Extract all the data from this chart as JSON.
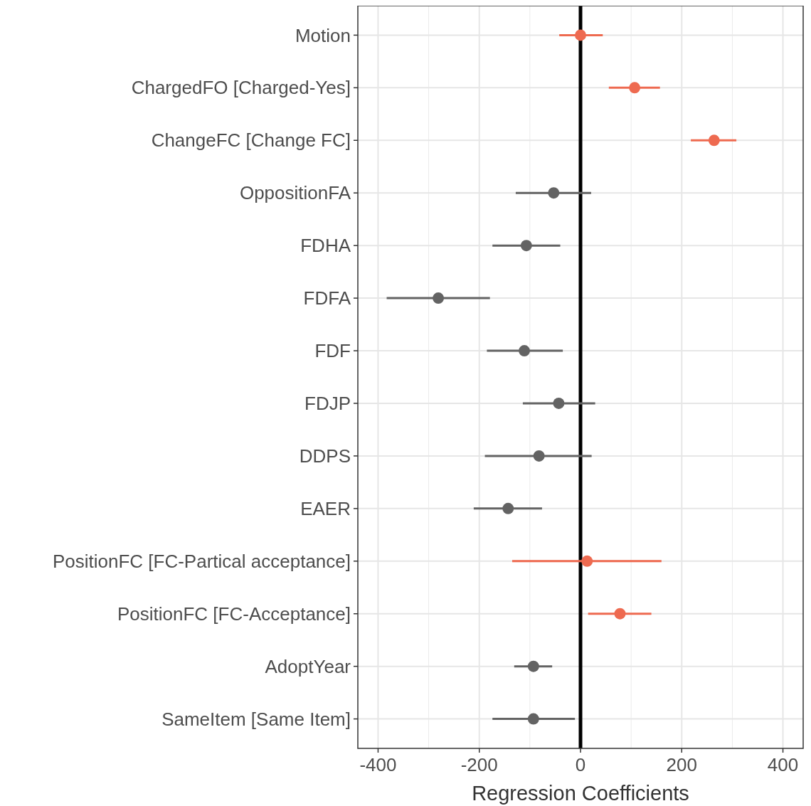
{
  "chart_data": {
    "type": "scatter",
    "orientation": "horizontal",
    "xlabel": "Regression Coefficients",
    "categories": [
      "Motion",
      "ChargedFO [Charged-Yes]",
      "ChangeFC [Change FC]",
      "OppositionFA",
      "FDHA",
      "FDFA",
      "FDF",
      "FDJP",
      "DDPS",
      "EAER",
      "PositionFC [FC-Partical acceptance]",
      "PositionFC [FC-Acceptance]",
      "AdoptYear",
      "SameItem [Same Item]"
    ],
    "values": [
      0,
      107,
      264,
      -53,
      -107,
      -281,
      -111,
      -43,
      -82,
      -143,
      13,
      78,
      -93,
      -93
    ],
    "errors": [
      [
        -42,
        44
      ],
      [
        56,
        157
      ],
      [
        218,
        308
      ],
      [
        -128,
        21
      ],
      [
        -174,
        -40
      ],
      [
        -383,
        -179
      ],
      [
        -185,
        -35
      ],
      [
        -114,
        29
      ],
      [
        -189,
        22
      ],
      [
        -211,
        -76
      ],
      [
        -135,
        160
      ],
      [
        15,
        140
      ],
      [
        -131,
        -56
      ],
      [
        -174,
        -11
      ]
    ],
    "colors": [
      "#ee6a50",
      "#ee6a50",
      "#ee6a50",
      "#636363",
      "#636363",
      "#636363",
      "#636363",
      "#636363",
      "#636363",
      "#636363",
      "#ee6a50",
      "#ee6a50",
      "#636363",
      "#636363"
    ],
    "xlim": [
      -440,
      440
    ],
    "xticks": [
      -400,
      -200,
      0,
      200,
      400
    ],
    "grid": true,
    "marker": "circle",
    "ref_lines": [
      {
        "axis": "x",
        "value": 0,
        "color": "#000000"
      }
    ]
  }
}
